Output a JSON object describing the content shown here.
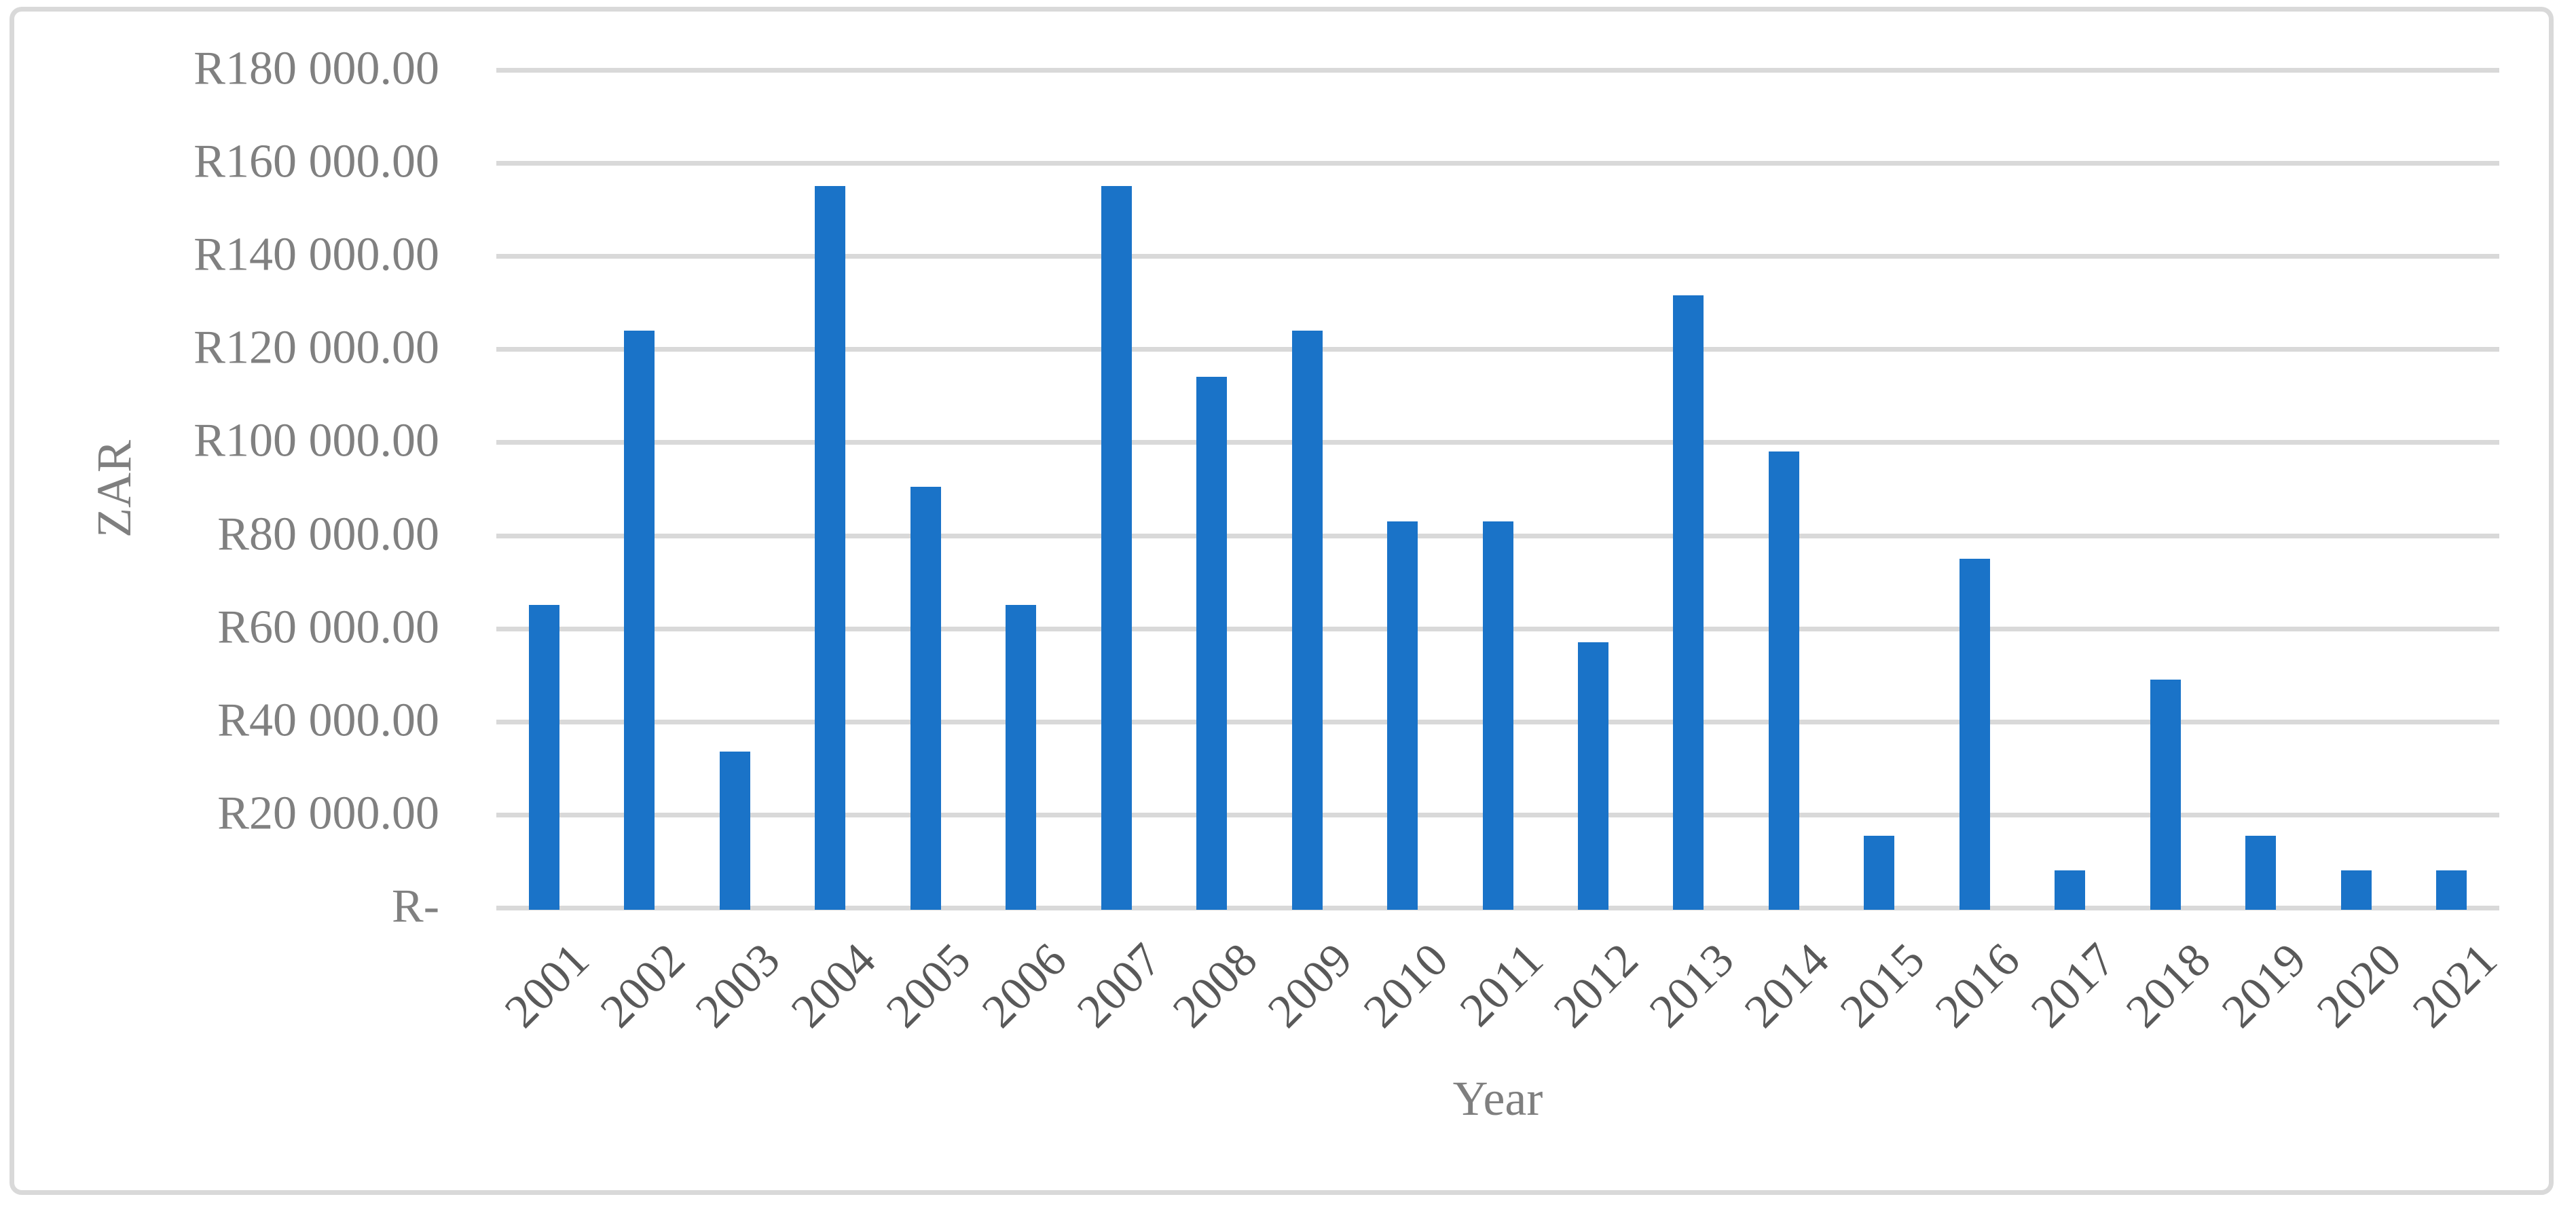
{
  "chart_data": {
    "type": "bar",
    "title": "",
    "xlabel": "Year",
    "ylabel": "ZAR",
    "categories": [
      "2001",
      "2002",
      "2003",
      "2004",
      "2005",
      "2006",
      "2007",
      "2008",
      "2009",
      "2010",
      "2011",
      "2012",
      "2013",
      "2014",
      "2015",
      "2016",
      "2017",
      "2018",
      "2019",
      "2020",
      "2021"
    ],
    "values": [
      65000,
      124000,
      33500,
      155000,
      90500,
      65000,
      155000,
      114000,
      124000,
      83000,
      83000,
      57000,
      131500,
      98000,
      15500,
      75000,
      8000,
      49000,
      15500,
      8000,
      8000
    ],
    "y_axis": {
      "min": 0,
      "max": 180000,
      "step": 20000,
      "tick_labels": [
        "R-",
        "R20 000.00",
        "R40 000.00",
        "R60 000.00",
        "R80 000.00",
        "R100 000.00",
        "R120 000.00",
        "R140 000.00",
        "R160 000.00",
        "R180 000.00"
      ]
    },
    "grid": "horizontal-only",
    "legend_position": "none",
    "colors": {
      "bar": "#1A73C8",
      "gridline": "#D9D9D9",
      "chart_border": "#D9D9D9",
      "y_tick_text": "#808080",
      "x_tick_text": "#595959",
      "axis_title_text": "#7F7F7F",
      "background": "#FFFFFF"
    }
  }
}
